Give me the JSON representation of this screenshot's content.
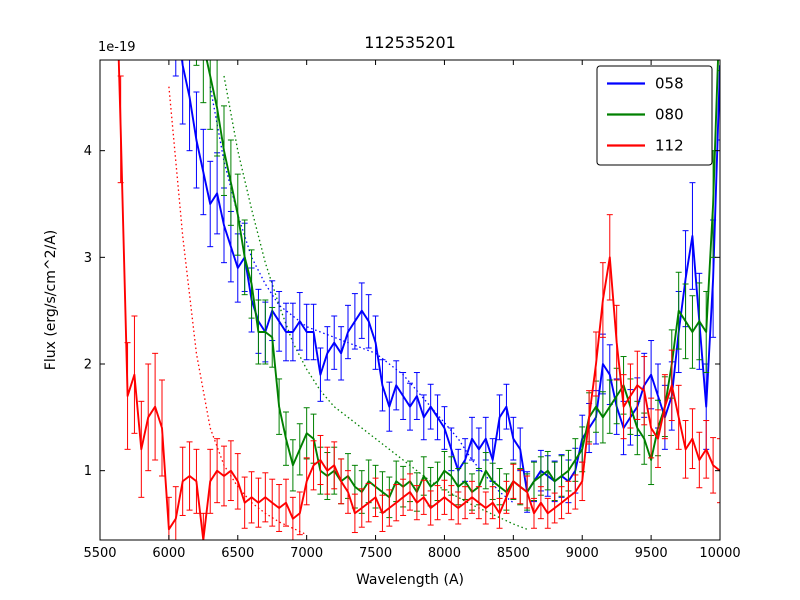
{
  "chart_data": {
    "type": "line",
    "title": "112535201",
    "xlabel": "Wavelength (A)",
    "ylabel": "Flux (erg/s/cm^2/A)",
    "y_offset_label": "1e-19",
    "xlim": [
      5500,
      10000
    ],
    "ylim": [
      0.35,
      4.85
    ],
    "xticks": [
      5500,
      6000,
      6500,
      7000,
      7500,
      8000,
      8500,
      9000,
      9500,
      10000
    ],
    "yticks": [
      1,
      2,
      3,
      4
    ],
    "grid": false,
    "legend_position": "upper right",
    "background": "#ffffff",
    "axis_color": "#000000",
    "series": [
      {
        "name": "058",
        "color": "#0000ff",
        "x": [
          6050,
          6100,
          6150,
          6200,
          6250,
          6300,
          6350,
          6400,
          6450,
          6500,
          6550,
          6600,
          6650,
          6700,
          6750,
          6800,
          6850,
          6900,
          6950,
          7000,
          7050,
          7100,
          7150,
          7200,
          7250,
          7300,
          7350,
          7400,
          7450,
          7500,
          7550,
          7600,
          7650,
          7700,
          7750,
          7800,
          7850,
          7900,
          7950,
          8000,
          8050,
          8100,
          8150,
          8200,
          8250,
          8300,
          8350,
          8400,
          8450,
          8500,
          8550,
          8600,
          8650,
          8700,
          8750,
          8800,
          8850,
          8900,
          8950,
          9000,
          9050,
          9100,
          9150,
          9200,
          9250,
          9300,
          9350,
          9400,
          9450,
          9500,
          9550,
          9600,
          9650,
          9700,
          9750,
          9800,
          9850,
          9900,
          9950,
          10000
        ],
        "y": [
          5.3,
          4.8,
          4.5,
          4.1,
          3.8,
          3.5,
          3.6,
          3.3,
          3.1,
          2.9,
          3.0,
          2.6,
          2.4,
          2.3,
          2.5,
          2.4,
          2.3,
          2.3,
          2.4,
          2.3,
          2.3,
          1.9,
          2.1,
          2.2,
          2.1,
          2.3,
          2.4,
          2.5,
          2.4,
          2.2,
          1.8,
          1.6,
          1.8,
          1.7,
          1.6,
          1.7,
          1.5,
          1.6,
          1.5,
          1.4,
          1.2,
          1.0,
          1.1,
          1.3,
          1.2,
          1.3,
          1.1,
          1.5,
          1.6,
          1.3,
          1.2,
          0.8,
          0.9,
          1.0,
          0.95,
          0.9,
          0.95,
          0.9,
          1.0,
          1.3,
          1.4,
          1.5,
          2.0,
          1.9,
          1.6,
          1.4,
          1.5,
          1.6,
          1.8,
          1.9,
          1.7,
          1.5,
          1.7,
          2.3,
          2.8,
          3.2,
          2.4,
          1.6,
          2.8,
          4.8
        ],
        "yerr": [
          0.6,
          0.55,
          0.5,
          0.45,
          0.4,
          0.4,
          0.38,
          0.35,
          0.33,
          0.32,
          0.32,
          0.3,
          0.3,
          0.28,
          0.28,
          0.28,
          0.27,
          0.27,
          0.27,
          0.26,
          0.26,
          0.25,
          0.25,
          0.25,
          0.25,
          0.25,
          0.26,
          0.26,
          0.25,
          0.25,
          0.24,
          0.23,
          0.23,
          0.22,
          0.22,
          0.22,
          0.21,
          0.21,
          0.21,
          0.2,
          0.2,
          0.2,
          0.2,
          0.2,
          0.2,
          0.2,
          0.2,
          0.21,
          0.21,
          0.2,
          0.2,
          0.19,
          0.19,
          0.19,
          0.19,
          0.19,
          0.2,
          0.2,
          0.21,
          0.22,
          0.23,
          0.25,
          0.28,
          0.28,
          0.26,
          0.25,
          0.26,
          0.27,
          0.3,
          0.32,
          0.3,
          0.3,
          0.32,
          0.38,
          0.45,
          0.5,
          0.45,
          0.4,
          0.55,
          0.7
        ]
      },
      {
        "name": "080",
        "color": "#008000",
        "x": [
          6200,
          6250,
          6300,
          6350,
          6400,
          6450,
          6500,
          6550,
          6600,
          6650,
          6700,
          6750,
          6800,
          6850,
          6900,
          6950,
          7000,
          7050,
          7100,
          7150,
          7200,
          7250,
          7300,
          7350,
          7400,
          7450,
          7500,
          7550,
          7600,
          7650,
          7700,
          7750,
          7800,
          7850,
          7900,
          7950,
          8000,
          8050,
          8100,
          8150,
          8200,
          8250,
          8300,
          8350,
          8400,
          8450,
          8500,
          8550,
          8600,
          8650,
          8700,
          8750,
          8800,
          8850,
          8900,
          8950,
          9000,
          9050,
          9100,
          9150,
          9200,
          9250,
          9300,
          9350,
          9400,
          9450,
          9500,
          9550,
          9600,
          9650,
          9700,
          9750,
          9800,
          9850,
          9900,
          9950,
          10000
        ],
        "y": [
          5.4,
          5.0,
          4.7,
          4.4,
          4.0,
          3.7,
          3.4,
          3.0,
          2.75,
          2.3,
          2.3,
          2.25,
          1.6,
          1.3,
          1.05,
          1.2,
          1.35,
          1.3,
          1.0,
          0.95,
          1.0,
          0.9,
          0.95,
          0.85,
          0.8,
          0.9,
          0.85,
          0.8,
          0.75,
          0.9,
          0.85,
          0.9,
          0.8,
          0.95,
          0.85,
          0.9,
          1.0,
          0.95,
          0.85,
          0.9,
          0.8,
          0.85,
          1.0,
          0.9,
          0.85,
          0.8,
          0.9,
          0.85,
          0.8,
          0.9,
          0.95,
          1.0,
          0.9,
          0.95,
          1.0,
          1.1,
          1.2,
          1.5,
          1.6,
          1.5,
          1.6,
          1.7,
          1.8,
          1.6,
          1.4,
          1.3,
          1.1,
          1.4,
          1.6,
          2.0,
          2.5,
          2.4,
          2.3,
          2.4,
          2.3,
          3.5,
          5.4
        ],
        "yerr": [
          0.6,
          0.55,
          0.5,
          0.45,
          0.42,
          0.4,
          0.38,
          0.35,
          0.32,
          0.3,
          0.3,
          0.28,
          0.26,
          0.25,
          0.24,
          0.24,
          0.24,
          0.23,
          0.22,
          0.22,
          0.22,
          0.21,
          0.21,
          0.2,
          0.2,
          0.2,
          0.2,
          0.19,
          0.19,
          0.19,
          0.19,
          0.19,
          0.18,
          0.18,
          0.18,
          0.18,
          0.18,
          0.18,
          0.17,
          0.17,
          0.17,
          0.17,
          0.17,
          0.17,
          0.17,
          0.17,
          0.17,
          0.17,
          0.17,
          0.18,
          0.18,
          0.18,
          0.18,
          0.19,
          0.19,
          0.2,
          0.21,
          0.23,
          0.24,
          0.24,
          0.25,
          0.26,
          0.27,
          0.26,
          0.25,
          0.24,
          0.23,
          0.26,
          0.28,
          0.32,
          0.36,
          0.35,
          0.34,
          0.36,
          0.38,
          0.5,
          0.65
        ]
      },
      {
        "name": "112",
        "color": "#ff0000",
        "x": [
          5600,
          5650,
          5700,
          5750,
          5800,
          5850,
          5900,
          5950,
          6000,
          6050,
          6100,
          6150,
          6200,
          6250,
          6300,
          6350,
          6400,
          6450,
          6500,
          6550,
          6600,
          6650,
          6700,
          6750,
          6800,
          6850,
          6900,
          6950,
          7000,
          7050,
          7100,
          7150,
          7200,
          7250,
          7300,
          7350,
          7400,
          7450,
          7500,
          7550,
          7600,
          7650,
          7700,
          7750,
          7800,
          7850,
          7900,
          7950,
          8000,
          8050,
          8100,
          8150,
          8200,
          8250,
          8300,
          8350,
          8400,
          8450,
          8500,
          8550,
          8600,
          8650,
          8700,
          8750,
          8800,
          8850,
          8900,
          8950,
          9000,
          9050,
          9100,
          9150,
          9200,
          9250,
          9300,
          9350,
          9400,
          9450,
          9500,
          9550,
          9600,
          9650,
          9700,
          9750,
          9800,
          9850,
          9900,
          9950,
          10000
        ],
        "y": [
          6.5,
          4.2,
          1.7,
          1.9,
          1.2,
          1.5,
          1.6,
          1.4,
          0.45,
          0.55,
          0.9,
          0.95,
          0.9,
          0.35,
          0.9,
          1.0,
          0.95,
          1.0,
          0.9,
          0.7,
          0.75,
          0.7,
          0.75,
          0.7,
          0.65,
          0.7,
          0.55,
          0.6,
          0.9,
          1.05,
          1.1,
          1.0,
          1.05,
          0.9,
          0.8,
          0.6,
          0.65,
          0.7,
          0.75,
          0.6,
          0.65,
          0.7,
          0.75,
          0.8,
          0.7,
          0.75,
          0.65,
          0.7,
          0.75,
          0.7,
          0.65,
          0.7,
          0.75,
          0.7,
          0.65,
          0.7,
          0.6,
          0.75,
          0.9,
          0.85,
          0.8,
          0.6,
          0.7,
          0.6,
          0.65,
          0.7,
          0.75,
          0.8,
          0.9,
          1.5,
          2.0,
          2.6,
          3.0,
          2.2,
          1.6,
          1.7,
          1.8,
          1.75,
          1.4,
          1.3,
          1.6,
          1.8,
          1.5,
          1.2,
          1.3,
          1.1,
          1.2,
          1.05,
          1.0
        ],
        "yerr": [
          1.2,
          0.5,
          0.5,
          0.55,
          0.45,
          0.5,
          0.5,
          0.45,
          0.3,
          0.3,
          0.32,
          0.32,
          0.3,
          0.25,
          0.3,
          0.3,
          0.28,
          0.28,
          0.26,
          0.24,
          0.24,
          0.23,
          0.23,
          0.22,
          0.22,
          0.22,
          0.2,
          0.2,
          0.22,
          0.23,
          0.23,
          0.22,
          0.22,
          0.21,
          0.2,
          0.18,
          0.18,
          0.18,
          0.18,
          0.17,
          0.17,
          0.17,
          0.17,
          0.17,
          0.16,
          0.16,
          0.16,
          0.16,
          0.16,
          0.16,
          0.15,
          0.15,
          0.15,
          0.15,
          0.15,
          0.15,
          0.14,
          0.15,
          0.16,
          0.16,
          0.15,
          0.14,
          0.15,
          0.14,
          0.14,
          0.15,
          0.15,
          0.16,
          0.18,
          0.25,
          0.3,
          0.35,
          0.4,
          0.35,
          0.3,
          0.3,
          0.32,
          0.32,
          0.28,
          0.27,
          0.3,
          0.33,
          0.3,
          0.27,
          0.28,
          0.26,
          0.27,
          0.26,
          0.3
        ]
      }
    ],
    "dotted_series": [
      {
        "name": "058-model",
        "color": "#0000ff",
        "x": [
          6300,
          6400,
          6500,
          6600,
          6700,
          6800,
          6900,
          7000,
          7100,
          7200,
          7300,
          7400,
          7500,
          7600,
          7700,
          7800,
          7900,
          8000,
          8100,
          8200,
          8300,
          8400,
          8500
        ],
        "y": [
          4.6,
          3.9,
          3.4,
          3.0,
          2.75,
          2.55,
          2.45,
          2.35,
          2.3,
          2.25,
          2.2,
          2.15,
          2.1,
          2.0,
          1.9,
          1.75,
          1.6,
          1.45,
          1.3,
          1.1,
          0.95,
          0.8,
          0.7
        ]
      },
      {
        "name": "080-model",
        "color": "#008000",
        "x": [
          6400,
          6500,
          6600,
          6700,
          6800,
          6900,
          7000,
          7100,
          7200,
          7300,
          7400,
          7500,
          7600,
          7700,
          7800,
          7900,
          8000,
          8100,
          8200,
          8300,
          8400,
          8500,
          8600
        ],
        "y": [
          4.7,
          4.0,
          3.45,
          2.95,
          2.55,
          2.2,
          1.95,
          1.75,
          1.6,
          1.5,
          1.4,
          1.3,
          1.2,
          1.1,
          1.0,
          0.9,
          0.82,
          0.75,
          0.68,
          0.62,
          0.56,
          0.5,
          0.45
        ]
      },
      {
        "name": "112-model",
        "color": "#ff0000",
        "x": [
          6000,
          6100,
          6200,
          6300,
          6400,
          6500,
          6600,
          6700,
          6800,
          6900,
          7000
        ],
        "y": [
          4.6,
          3.2,
          2.1,
          1.4,
          1.05,
          0.85,
          0.7,
          0.6,
          0.52,
          0.46,
          0.4
        ]
      }
    ],
    "legend_labels": [
      "058",
      "080",
      "112"
    ]
  }
}
